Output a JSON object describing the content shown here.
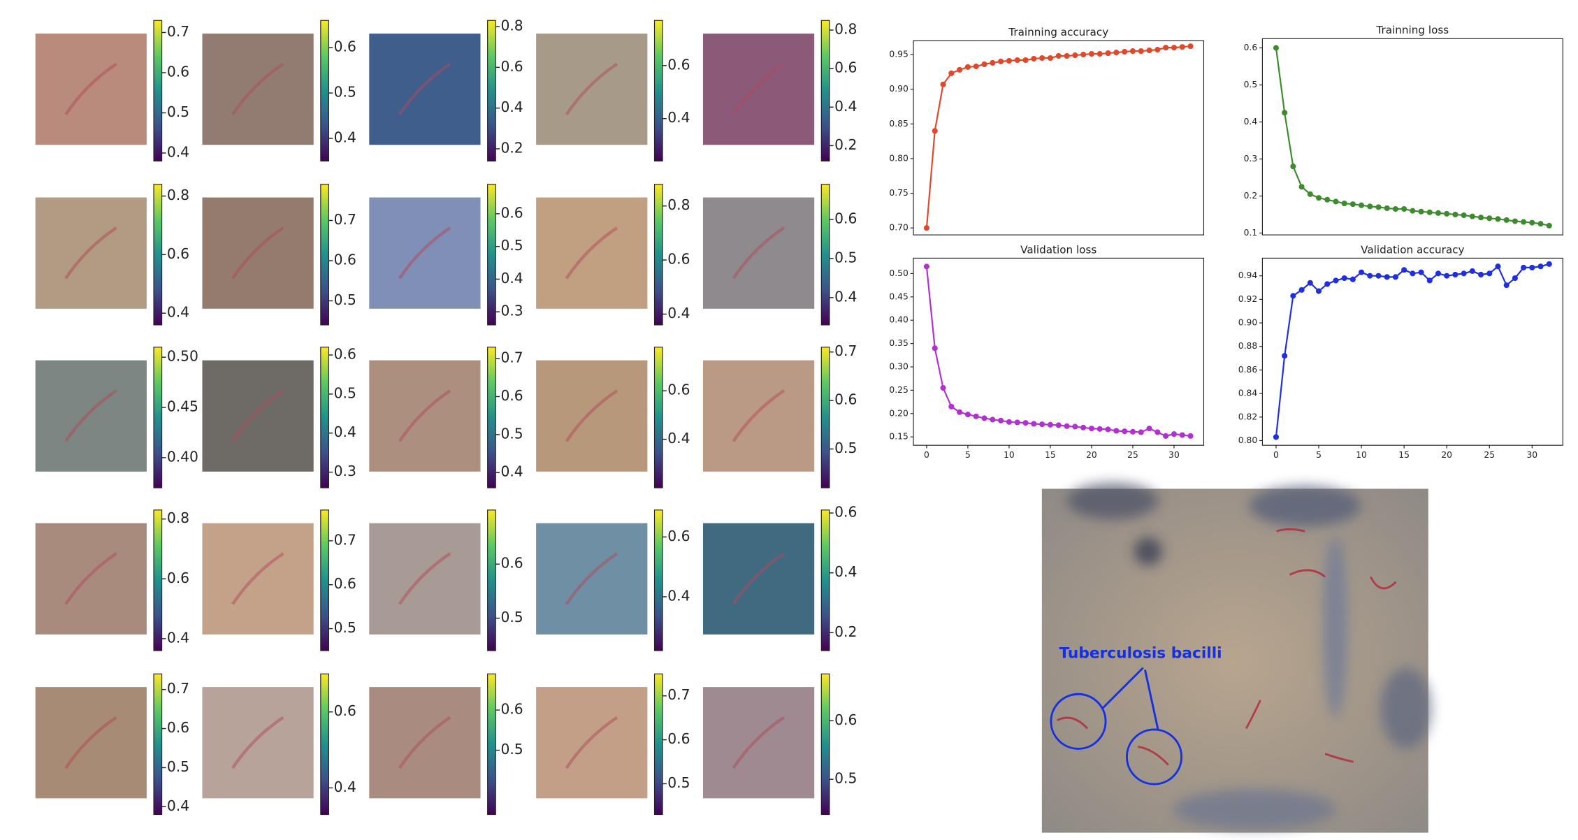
{
  "tiles": [
    {
      "ylim": [
        0.38,
        0.73
      ],
      "yticks": [
        0.7,
        0.6,
        0.5,
        0.4
      ]
    },
    {
      "ylim": [
        0.35,
        0.66
      ],
      "yticks": [
        0.6,
        0.5,
        0.4
      ]
    },
    {
      "ylim": [
        0.14,
        0.83
      ],
      "yticks": [
        0.8,
        0.6,
        0.4,
        0.2
      ]
    },
    {
      "ylim": [
        0.24,
        0.77
      ],
      "yticks": [
        0.6,
        0.4
      ]
    },
    {
      "ylim": [
        0.12,
        0.85
      ],
      "yticks": [
        0.8,
        0.6,
        0.4,
        0.2
      ]
    },
    {
      "ylim": [
        0.36,
        0.84
      ],
      "yticks": [
        0.8,
        0.6,
        0.4
      ]
    },
    {
      "ylim": [
        0.44,
        0.79
      ],
      "yticks": [
        0.7,
        0.6,
        0.5
      ]
    },
    {
      "ylim": [
        0.26,
        0.69
      ],
      "yticks": [
        0.6,
        0.5,
        0.4,
        0.3
      ]
    },
    {
      "ylim": [
        0.36,
        0.88
      ],
      "yticks": [
        0.8,
        0.6,
        0.4
      ]
    },
    {
      "ylim": [
        0.33,
        0.69
      ],
      "yticks": [
        0.6,
        0.5,
        0.4
      ]
    },
    {
      "ylim": [
        0.37,
        0.51
      ],
      "yticks": [
        {
          "value": 0.5,
          "label": "0.50"
        },
        0.45,
        {
          "value": 0.4,
          "label": "0.40"
        }
      ]
    },
    {
      "ylim": [
        0.26,
        0.62
      ],
      "yticks": [
        0.6,
        0.5,
        0.4,
        0.3
      ]
    },
    {
      "ylim": [
        0.36,
        0.73
      ],
      "yticks": [
        0.7,
        0.6,
        0.5,
        0.4
      ]
    },
    {
      "ylim": [
        0.2,
        0.78
      ],
      "yticks": [
        0.6,
        0.4
      ]
    },
    {
      "ylim": [
        0.42,
        0.71
      ],
      "yticks": [
        0.7,
        0.6,
        0.5
      ]
    },
    {
      "ylim": [
        0.36,
        0.83
      ],
      "yticks": [
        0.8,
        0.6,
        0.4
      ]
    },
    {
      "ylim": [
        0.45,
        0.77
      ],
      "yticks": [
        0.7,
        0.6,
        0.5
      ]
    },
    {
      "ylim": [
        0.44,
        0.7
      ],
      "yticks": [
        0.6,
        0.5
      ]
    },
    {
      "ylim": [
        0.22,
        0.69
      ],
      "yticks": [
        0.6,
        0.4
      ]
    },
    {
      "ylim": [
        0.14,
        0.61
      ],
      "yticks": [
        0.6,
        0.4,
        0.2
      ]
    },
    {
      "ylim": [
        0.38,
        0.74
      ],
      "yticks": [
        0.7,
        0.6,
        0.5,
        0.4
      ]
    },
    {
      "ylim": [
        0.33,
        0.7
      ],
      "yticks": [
        0.6,
        0.4
      ]
    },
    {
      "ylim": [
        0.34,
        0.69
      ],
      "yticks": [
        0.6,
        0.5
      ]
    },
    {
      "ylim": [
        0.43,
        0.75
      ],
      "yticks": [
        0.7,
        0.6,
        0.5
      ]
    },
    {
      "ylim": [
        0.44,
        0.68
      ],
      "yticks": [
        0.6,
        0.5
      ]
    }
  ],
  "chart_data": [
    {
      "type": "line",
      "title": "Trainning accuracy",
      "color": "#e0482a",
      "x": [
        0,
        1,
        2,
        3,
        4,
        5,
        6,
        7,
        8,
        9,
        10,
        11,
        12,
        13,
        14,
        15,
        16,
        17,
        18,
        19,
        20,
        21,
        22,
        23,
        24,
        25,
        26,
        27,
        28,
        29,
        30,
        31,
        32
      ],
      "values": [
        0.7,
        0.84,
        0.907,
        0.923,
        0.928,
        0.932,
        0.933,
        0.936,
        0.938,
        0.94,
        0.941,
        0.942,
        0.942,
        0.944,
        0.945,
        0.945,
        0.948,
        0.948,
        0.949,
        0.95,
        0.951,
        0.951,
        0.952,
        0.953,
        0.954,
        0.955,
        0.955,
        0.956,
        0.957,
        0.96,
        0.96,
        0.961,
        0.962
      ],
      "xlim": [
        -1.6,
        33.6
      ],
      "ylim": [
        0.69,
        0.97
      ],
      "yticks": [
        {
          "value": 0.7,
          "label": "0.70"
        },
        0.75,
        {
          "value": 0.8,
          "label": "0.80"
        },
        0.85,
        {
          "value": 0.9,
          "label": "0.90"
        },
        0.95
      ]
    },
    {
      "type": "line",
      "title": "Trainning loss",
      "color": "#3e8a2e",
      "x": [
        0,
        1,
        2,
        3,
        4,
        5,
        6,
        7,
        8,
        9,
        10,
        11,
        12,
        13,
        14,
        15,
        16,
        17,
        18,
        19,
        20,
        21,
        22,
        23,
        24,
        25,
        26,
        27,
        28,
        29,
        30,
        31,
        32
      ],
      "values": [
        0.6,
        0.425,
        0.28,
        0.225,
        0.205,
        0.195,
        0.19,
        0.185,
        0.18,
        0.178,
        0.175,
        0.172,
        0.17,
        0.167,
        0.165,
        0.165,
        0.16,
        0.158,
        0.156,
        0.154,
        0.152,
        0.15,
        0.148,
        0.145,
        0.142,
        0.14,
        0.138,
        0.135,
        0.132,
        0.13,
        0.128,
        0.125,
        0.12
      ],
      "xlim": [
        -1.6,
        33.6
      ],
      "ylim": [
        0.095,
        0.625
      ],
      "yticks": [
        0.1,
        0.2,
        0.3,
        0.4,
        0.5,
        0.6
      ]
    },
    {
      "type": "line",
      "title": "Validation loss",
      "color": "#b030d0",
      "x": [
        0,
        1,
        2,
        3,
        4,
        5,
        6,
        7,
        8,
        9,
        10,
        11,
        12,
        13,
        14,
        15,
        16,
        17,
        18,
        19,
        20,
        21,
        22,
        23,
        24,
        25,
        26,
        27,
        28,
        29,
        30,
        31,
        32
      ],
      "values": [
        0.515,
        0.34,
        0.255,
        0.215,
        0.203,
        0.198,
        0.194,
        0.19,
        0.187,
        0.185,
        0.182,
        0.181,
        0.18,
        0.178,
        0.177,
        0.176,
        0.175,
        0.173,
        0.172,
        0.17,
        0.168,
        0.167,
        0.166,
        0.163,
        0.162,
        0.161,
        0.16,
        0.168,
        0.16,
        0.152,
        0.156,
        0.154,
        0.152
      ],
      "xlim": [
        -1.6,
        33.6
      ],
      "ylim": [
        0.132,
        0.533
      ],
      "xticks": [
        0,
        5,
        10,
        15,
        20,
        25,
        30
      ],
      "yticks": [
        0.15,
        {
          "value": 0.2,
          "label": "0.20"
        },
        0.25,
        {
          "value": 0.3,
          "label": "0.30"
        },
        0.35,
        {
          "value": 0.4,
          "label": "0.40"
        },
        0.45,
        {
          "value": 0.5,
          "label": "0.50"
        }
      ]
    },
    {
      "type": "line",
      "title": "Validation accuracy",
      "color": "#1f2fe0",
      "x": [
        0,
        1,
        2,
        3,
        4,
        5,
        6,
        7,
        8,
        9,
        10,
        11,
        12,
        13,
        14,
        15,
        16,
        17,
        18,
        19,
        20,
        21,
        22,
        23,
        24,
        25,
        26,
        27,
        28,
        29,
        30,
        31,
        32
      ],
      "values": [
        0.803,
        0.872,
        0.923,
        0.928,
        0.934,
        0.927,
        0.933,
        0.936,
        0.938,
        0.937,
        0.943,
        0.94,
        0.94,
        0.939,
        0.939,
        0.945,
        0.942,
        0.943,
        0.936,
        0.942,
        0.94,
        0.941,
        0.942,
        0.944,
        0.941,
        0.942,
        0.948,
        0.932,
        0.938,
        0.947,
        0.947,
        0.948,
        0.95
      ],
      "xlim": [
        -1.6,
        33.6
      ],
      "ylim": [
        0.796,
        0.955
      ],
      "xticks": [
        0,
        5,
        10,
        15,
        20,
        25,
        30
      ],
      "yticks": [
        {
          "value": 0.8,
          "label": "0.80"
        },
        0.82,
        0.84,
        0.86,
        0.88,
        {
          "value": 0.9,
          "label": "0.90"
        },
        0.92,
        0.94
      ]
    }
  ],
  "annotation": {
    "text": "Tuberculosis bacilli"
  }
}
